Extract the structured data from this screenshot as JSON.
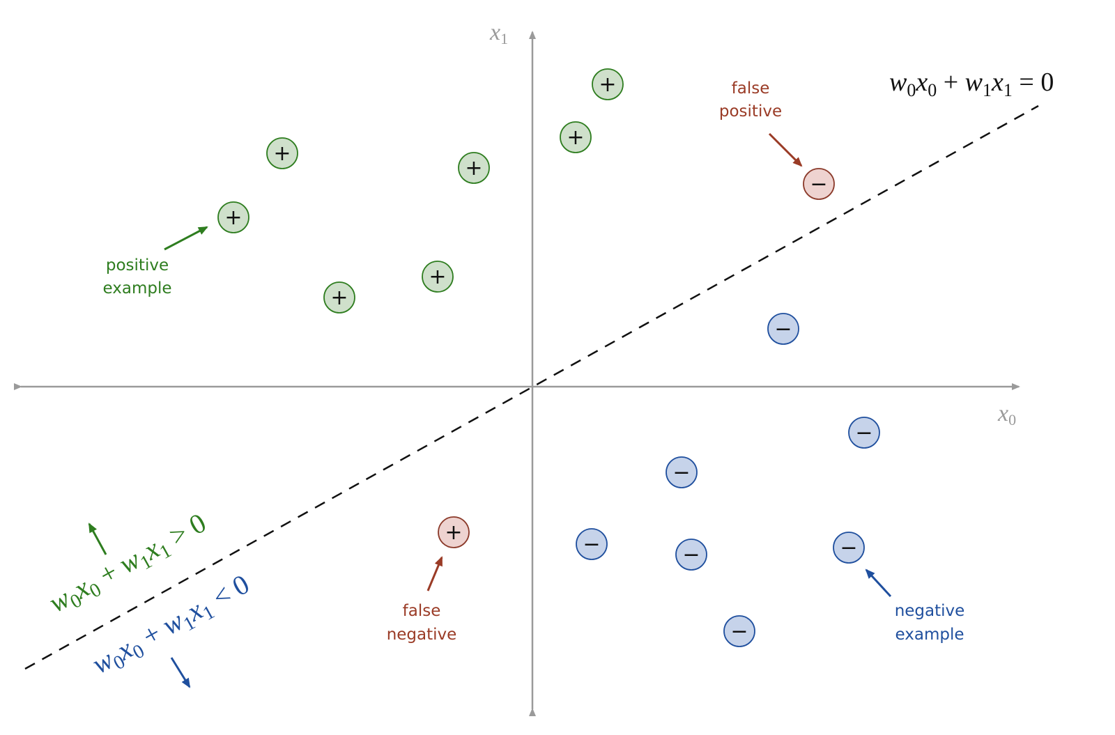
{
  "axes": {
    "x_label": "x",
    "x_sub": "0",
    "y_label": "x",
    "y_sub": "1"
  },
  "boundary": {
    "label_parts": [
      "w",
      "0",
      "x",
      "0",
      " + ",
      "w",
      "1",
      "x",
      "1",
      " = 0"
    ]
  },
  "regions": {
    "positive": {
      "parts": [
        "w",
        "0",
        "x",
        "0",
        " + ",
        "w",
        "1",
        "x",
        "1",
        " > 0"
      ],
      "color": "#2e7d1f"
    },
    "negative": {
      "parts": [
        "w",
        "0",
        "x",
        "0",
        " + ",
        "w",
        "1",
        "x",
        "1",
        " < 0"
      ],
      "color": "#1f4f9e"
    }
  },
  "annotations": {
    "positive_example": [
      "positive",
      "example"
    ],
    "negative_example": [
      "negative",
      "example"
    ],
    "false_positive": [
      "false",
      "positive"
    ],
    "false_negative": [
      "false",
      "negative"
    ]
  },
  "symbols": {
    "plus": "+",
    "minus": "−"
  },
  "colors": {
    "positive_fill": "#cfe0cb",
    "positive_stroke": "#2e7d1f",
    "negative_fill": "#c6d3ea",
    "negative_stroke": "#1f4f9e",
    "error_fill": "#eed3d0",
    "error_stroke": "#8b3a2a",
    "axis": "#9a9a9a",
    "annotation_red": "#9a3b26"
  },
  "points": [
    {
      "label": "positive",
      "prediction": "positive"
    },
    {
      "label": "positive",
      "prediction": "positive"
    },
    {
      "label": "positive",
      "prediction": "positive"
    },
    {
      "label": "positive",
      "prediction": "positive"
    },
    {
      "label": "positive",
      "prediction": "positive"
    },
    {
      "label": "positive",
      "prediction": "positive"
    },
    {
      "label": "positive",
      "prediction": "positive"
    },
    {
      "label": "negative",
      "prediction": "positive"
    },
    {
      "label": "negative",
      "prediction": "negative"
    },
    {
      "label": "negative",
      "prediction": "negative"
    },
    {
      "label": "negative",
      "prediction": "negative"
    },
    {
      "label": "negative",
      "prediction": "negative"
    },
    {
      "label": "negative",
      "prediction": "negative"
    },
    {
      "label": "negative",
      "prediction": "negative"
    },
    {
      "label": "negative",
      "prediction": "negative"
    },
    {
      "label": "positive",
      "prediction": "negative"
    }
  ]
}
